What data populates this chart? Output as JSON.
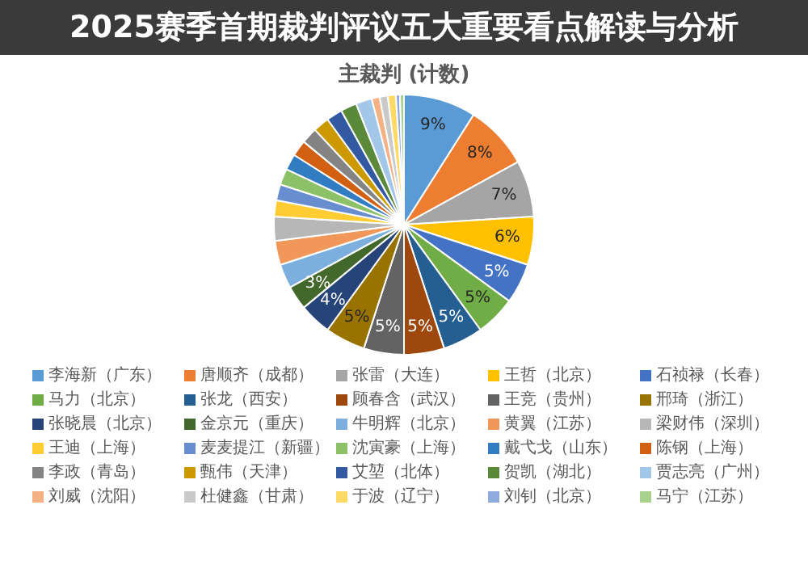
{
  "chart_data": {
    "type": "pie",
    "title": "主裁判 (计数)",
    "annotations": [
      "2025赛季首期裁判评议五大重要看点解读与分析"
    ],
    "legend": "bottom",
    "categories": [
      "李海新（广东）",
      "唐顺齐（成都）",
      "张雷（大连）",
      "王哲（北京）",
      "石祯禄（长春）",
      "马力（北京）",
      "张龙（西安）",
      "顾春含（武汉）",
      "王竞（贵州）",
      "邢琦（浙江）",
      "张晓晨（北京）",
      "金京元（重庆）",
      "牛明辉（北京）",
      "黄翼（江苏）",
      "梁财伟（深圳）",
      "王迪（上海）",
      "麦麦提江（新疆）",
      "沈寅豪（上海）",
      "戴弋戈（山东）",
      "陈钢（上海）",
      "李政（青岛）",
      "甄伟（天津）",
      "艾堃（北体）",
      "贺凯（湖北）",
      "贾志亮（广州）",
      "刘威（沈阳）",
      "杜健鑫（甘肃）",
      "于波（辽宁）",
      "刘钊（北京）",
      "马宁（江苏）"
    ],
    "values": [
      9,
      8,
      7,
      6,
      5,
      5,
      5,
      5,
      5,
      5,
      4,
      3,
      3,
      3,
      3,
      2,
      2,
      2,
      2,
      2,
      2,
      2,
      2,
      2,
      2,
      1,
      1,
      1,
      0.5,
      0.5
    ],
    "value_labels": [
      "9%",
      "8%",
      "7%",
      "6%",
      "5%",
      "5%",
      "5%",
      "5%",
      "5%",
      "5%",
      "4%",
      "3%",
      null,
      null,
      null,
      null,
      null,
      null,
      null,
      null,
      null,
      null,
      null,
      null,
      null,
      null,
      null,
      null,
      null,
      null
    ],
    "colors": [
      "#5b9bd5",
      "#ed7d31",
      "#a5a5a5",
      "#ffc000",
      "#4472c4",
      "#70ad47",
      "#255e91",
      "#9e480e",
      "#636363",
      "#997300",
      "#264478",
      "#43682b",
      "#7cafdd",
      "#f1975a",
      "#b7b7b7",
      "#ffcd33",
      "#698ed0",
      "#8cc168",
      "#327dc2",
      "#d26012",
      "#848484",
      "#cc9a00",
      "#335aa1",
      "#5a8a39",
      "#a3c7e9",
      "#f4b183",
      "#c9c9c9",
      "#ffd966",
      "#8faadc",
      "#a9d18e"
    ]
  }
}
